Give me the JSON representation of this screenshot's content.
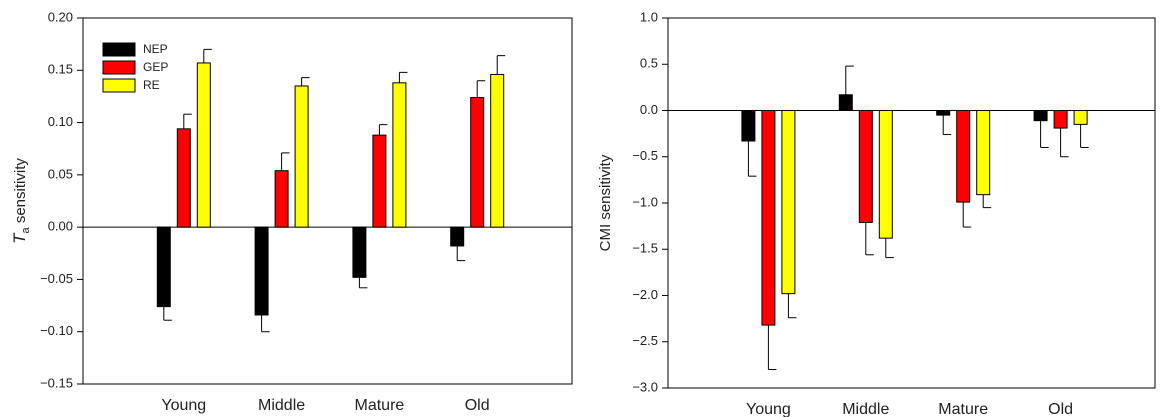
{
  "chart_data": [
    {
      "type": "bar",
      "ylabel": {
        "symbol": "T",
        "subscript": "a",
        "text": " sensitivity"
      },
      "categories": [
        "Young",
        "Middle",
        "Mature",
        "Old"
      ],
      "series": [
        {
          "name": "NEP",
          "color": "#000000",
          "values": [
            -0.076,
            -0.084,
            -0.048,
            -0.018
          ],
          "errors": [
            0.013,
            0.016,
            0.01,
            0.014
          ]
        },
        {
          "name": "GEP",
          "color": "#ff0000",
          "values": [
            0.094,
            0.054,
            0.088,
            0.124
          ],
          "errors": [
            0.014,
            0.017,
            0.01,
            0.016
          ]
        },
        {
          "name": "RE",
          "color": "#ffff00",
          "values": [
            0.157,
            0.135,
            0.138,
            0.146
          ],
          "errors": [
            0.013,
            0.008,
            0.01,
            0.018
          ]
        }
      ],
      "ylim": [
        -0.15,
        0.2
      ],
      "yticks": [
        {
          "value": -0.15,
          "label": "−0.15"
        },
        {
          "value": -0.1,
          "label": "−0.10"
        },
        {
          "value": -0.05,
          "label": "−0.05"
        },
        {
          "value": 0,
          "label": "0.00"
        },
        0.05,
        {
          "value": 0.1,
          "label": "0.10"
        },
        0.15,
        {
          "value": 0.2,
          "label": "0.20"
        }
      ],
      "legend": "upper left"
    },
    {
      "type": "bar",
      "ylabel": {
        "text": "CMI sensitivity"
      },
      "categories": [
        "Young",
        "Middle",
        "Mature",
        "Old"
      ],
      "series": [
        {
          "color": "#000000",
          "values": [
            -0.33,
            0.17,
            -0.05,
            -0.11
          ],
          "errors": [
            0.38,
            0.31,
            0.21,
            0.29
          ]
        },
        {
          "color": "#ff0000",
          "values": [
            -2.32,
            -1.21,
            -0.99,
            -0.19
          ],
          "errors": [
            0.48,
            0.35,
            0.27,
            0.31
          ]
        },
        {
          "color": "#ffff00",
          "values": [
            -1.98,
            -1.38,
            -0.91,
            -0.15
          ],
          "errors": [
            0.26,
            0.21,
            0.14,
            0.25
          ]
        }
      ],
      "ylim": [
        -3,
        1
      ],
      "yticks": [
        {
          "value": -3,
          "label": "−3.0"
        },
        {
          "value": -2.5,
          "label": "−2.5"
        },
        {
          "value": -2,
          "label": "−2.0"
        },
        {
          "value": -1.5,
          "label": "−1.5"
        },
        {
          "value": -1,
          "label": "−1.0"
        },
        {
          "value": -0.5,
          "label": "−0.5"
        },
        {
          "value": 0,
          "label": "0.0"
        },
        0.5,
        {
          "value": 1,
          "label": "1.0"
        }
      ]
    }
  ]
}
